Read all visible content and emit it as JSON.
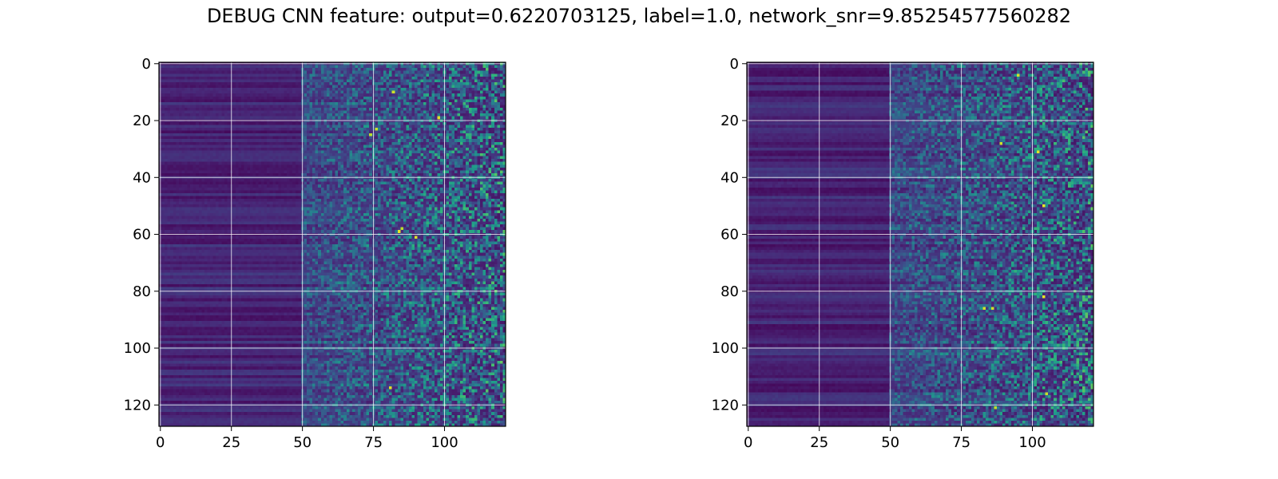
{
  "figure": {
    "title": "DEBUG CNN feature: output=0.6220703125, label=1.0, network_snr=9.85254577560282"
  },
  "chart_data": [
    {
      "type": "heatmap",
      "title": "",
      "xlabel": "",
      "ylabel": "",
      "colormap": "viridis",
      "rows": 128,
      "cols": 122,
      "xlim": [
        0,
        121
      ],
      "ylim": [
        127,
        0
      ],
      "x_ticks": [
        0,
        25,
        50,
        75,
        100
      ],
      "y_ticks": [
        0,
        20,
        40,
        60,
        80,
        100,
        120
      ],
      "grid": true,
      "value_description": "low-valued (dark purple) band for columns 0–50, increasingly noisy with sparse high-valued (teal/yellow) cells for columns 50–121",
      "hotspots": [
        [
          81,
          114
        ],
        [
          84,
          59
        ],
        [
          85,
          58
        ],
        [
          82,
          10
        ],
        [
          98,
          19
        ],
        [
          90,
          61
        ],
        [
          74,
          25
        ],
        [
          76,
          23
        ]
      ]
    },
    {
      "type": "heatmap",
      "title": "",
      "xlabel": "",
      "ylabel": "",
      "colormap": "viridis",
      "rows": 128,
      "cols": 122,
      "xlim": [
        0,
        121
      ],
      "ylim": [
        127,
        0
      ],
      "x_ticks": [
        0,
        25,
        50,
        75,
        100
      ],
      "y_ticks": [
        0,
        20,
        40,
        60,
        80,
        100,
        120
      ],
      "grid": true,
      "value_description": "low-valued (dark purple) band for columns 0–50, increasingly noisy with sparse high-valued (teal/yellow) cells for columns 50–121",
      "hotspots": [
        [
          87,
          121
        ],
        [
          89,
          28
        ],
        [
          102,
          31
        ],
        [
          83,
          86
        ],
        [
          86,
          86
        ],
        [
          104,
          50
        ],
        [
          105,
          116
        ],
        [
          104,
          82
        ],
        [
          95,
          4
        ]
      ]
    }
  ]
}
